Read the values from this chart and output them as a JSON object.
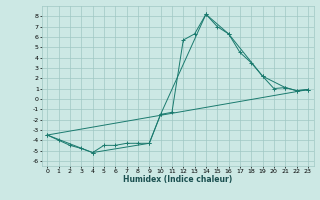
{
  "title": "",
  "xlabel": "Humidex (Indice chaleur)",
  "background_color": "#cce8e4",
  "grid_color": "#a0c8c4",
  "line_color": "#1a7a6e",
  "xlim": [
    -0.5,
    23.5
  ],
  "ylim": [
    -6.5,
    9.0
  ],
  "yticks": [
    -6,
    -5,
    -4,
    -3,
    -2,
    -1,
    0,
    1,
    2,
    3,
    4,
    5,
    6,
    7,
    8
  ],
  "xticks": [
    0,
    1,
    2,
    3,
    4,
    5,
    6,
    7,
    8,
    9,
    10,
    11,
    12,
    13,
    14,
    15,
    16,
    17,
    18,
    19,
    20,
    21,
    22,
    23
  ],
  "series1_x": [
    0,
    1,
    2,
    3,
    4,
    5,
    6,
    7,
    8,
    9,
    10,
    11,
    12,
    13,
    14,
    15,
    16,
    17,
    18,
    19,
    20,
    21,
    22,
    23
  ],
  "series1_y": [
    -3.5,
    -4.0,
    -4.5,
    -4.8,
    -5.2,
    -4.5,
    -4.5,
    -4.3,
    -4.3,
    -4.3,
    -1.5,
    -1.3,
    5.7,
    6.3,
    8.2,
    7.0,
    6.3,
    4.5,
    3.5,
    2.2,
    1.0,
    1.1,
    0.8,
    0.9
  ],
  "series2_x": [
    0,
    4,
    9,
    10,
    14,
    16,
    19,
    21,
    22,
    23
  ],
  "series2_y": [
    -3.5,
    -5.2,
    -4.3,
    -1.5,
    8.2,
    6.3,
    2.2,
    1.1,
    0.8,
    0.9
  ],
  "series3_x": [
    0,
    23
  ],
  "series3_y": [
    -3.5,
    0.9
  ]
}
